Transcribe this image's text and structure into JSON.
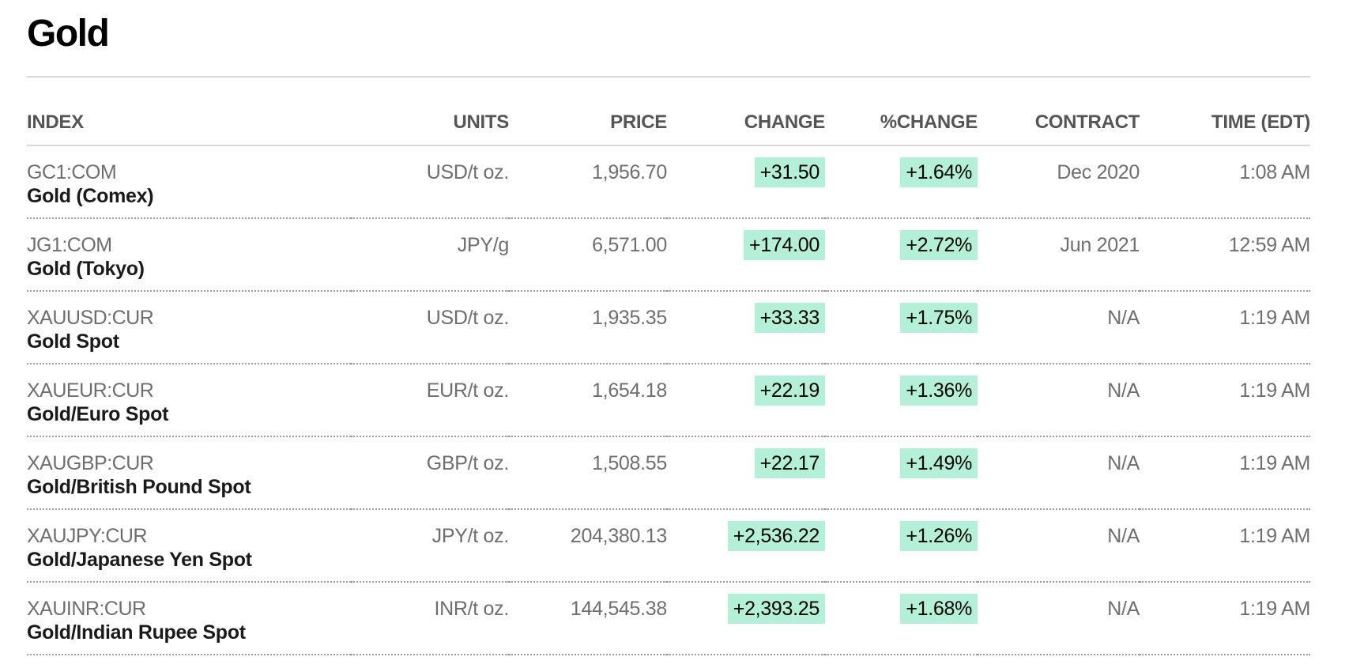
{
  "page": {
    "title": "Gold"
  },
  "colors": {
    "positive_highlight": "#b4f0d8",
    "header_text": "#555555",
    "ticker_text": "#6e6e6e",
    "name_text": "#1a1a1a"
  },
  "table": {
    "headers": {
      "index": "INDEX",
      "units": "UNITS",
      "price": "PRICE",
      "change": "CHANGE",
      "pct_change": "%CHANGE",
      "contract": "CONTRACT",
      "time": "TIME (EDT)"
    },
    "rows": [
      {
        "ticker": "GC1:COM",
        "name": "Gold (Comex)",
        "units": "USD/t oz.",
        "price": "1,956.70",
        "change": "+31.50",
        "pct_change": "+1.64%",
        "contract": "Dec 2020",
        "time": "1:08 AM"
      },
      {
        "ticker": "JG1:COM",
        "name": "Gold (Tokyo)",
        "units": "JPY/g",
        "price": "6,571.00",
        "change": "+174.00",
        "pct_change": "+2.72%",
        "contract": "Jun 2021",
        "time": "12:59 AM"
      },
      {
        "ticker": "XAUUSD:CUR",
        "name": "Gold Spot",
        "units": "USD/t oz.",
        "price": "1,935.35",
        "change": "+33.33",
        "pct_change": "+1.75%",
        "contract": "N/A",
        "time": "1:19 AM"
      },
      {
        "ticker": "XAUEUR:CUR",
        "name": "Gold/Euro Spot",
        "units": "EUR/t oz.",
        "price": "1,654.18",
        "change": "+22.19",
        "pct_change": "+1.36%",
        "contract": "N/A",
        "time": "1:19 AM"
      },
      {
        "ticker": "XAUGBP:CUR",
        "name": "Gold/British Pound Spot",
        "units": "GBP/t oz.",
        "price": "1,508.55",
        "change": "+22.17",
        "pct_change": "+1.49%",
        "contract": "N/A",
        "time": "1:19 AM"
      },
      {
        "ticker": "XAUJPY:CUR",
        "name": "Gold/Japanese Yen Spot",
        "units": "JPY/t oz.",
        "price": "204,380.13",
        "change": "+2,536.22",
        "pct_change": "+1.26%",
        "contract": "N/A",
        "time": "1:19 AM"
      },
      {
        "ticker": "XAUINR:CUR",
        "name": "Gold/Indian Rupee Spot",
        "units": "INR/t oz.",
        "price": "144,545.38",
        "change": "+2,393.25",
        "pct_change": "+1.68%",
        "contract": "N/A",
        "time": "1:19 AM"
      }
    ]
  }
}
